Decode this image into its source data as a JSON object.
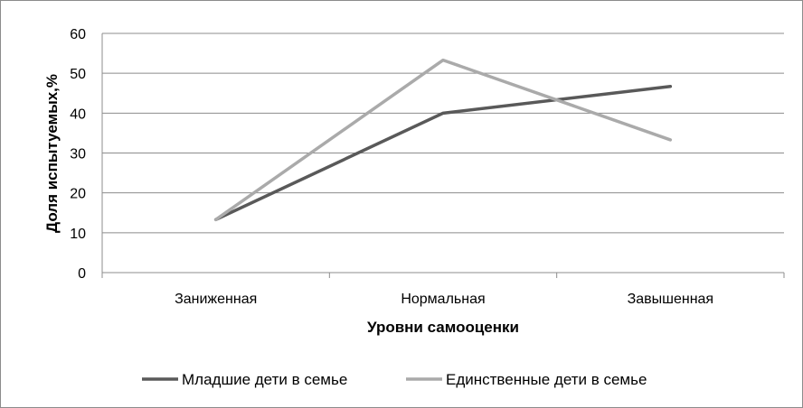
{
  "chart_data": {
    "type": "line",
    "categories": [
      "Заниженная",
      "Нормальная",
      "Завышенная"
    ],
    "series": [
      {
        "name": "Младшие дети в семье",
        "values": [
          13.3,
          40,
          46.7
        ],
        "color": "#595959"
      },
      {
        "name": "Единственные дети в семье",
        "values": [
          13.3,
          53.3,
          33.3
        ],
        "color": "#aaaaaa"
      }
    ],
    "xlabel": "Уровни самооценки",
    "ylabel": "Доля испытуемых,%",
    "ylim": [
      0,
      60
    ],
    "yticks": [
      0,
      10,
      20,
      30,
      40,
      50,
      60
    ],
    "grid": true,
    "legend": "bottom"
  }
}
